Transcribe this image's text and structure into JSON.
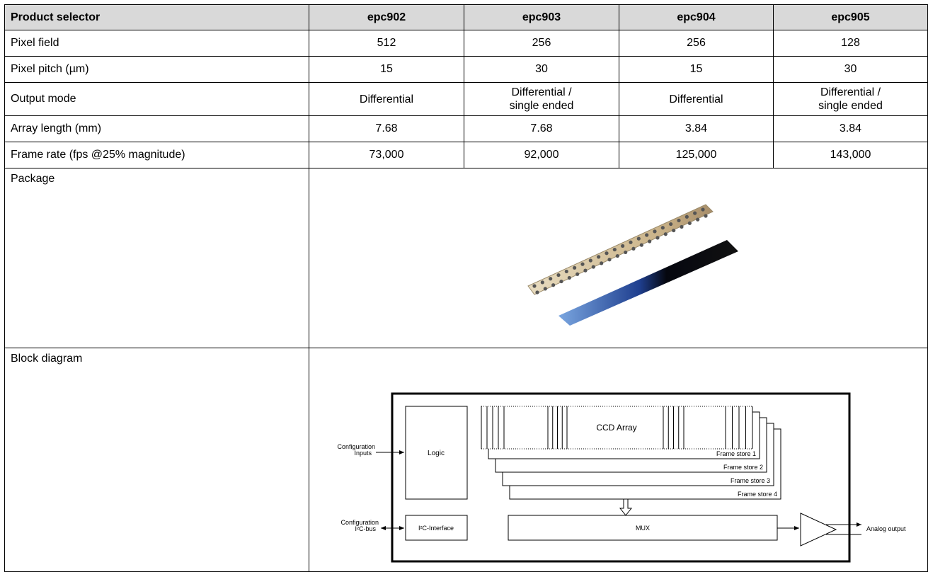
{
  "table": {
    "header": [
      "Product selector",
      "epc902",
      "epc903",
      "epc904",
      "epc905"
    ],
    "rows": [
      [
        "Pixel field",
        "512",
        "256",
        "256",
        "128"
      ],
      [
        "Pixel pitch (µm)",
        "15",
        "30",
        "15",
        "30"
      ],
      [
        "Output mode",
        [
          "Differential"
        ],
        [
          "Differential /",
          "single ended"
        ],
        [
          "Differential"
        ],
        [
          "Differential /",
          "single ended"
        ]
      ],
      [
        "Array length (mm)",
        "7.68",
        "7.68",
        "3.84",
        "3.84"
      ],
      [
        "Frame rate (fps @25% magnitude)",
        "73,000",
        "92,000",
        "125,000",
        "143,000"
      ]
    ],
    "package_label": "Package",
    "block_diagram_label": "Block diagram"
  },
  "diagram": {
    "config_inputs": [
      "Configuration",
      "Inputs"
    ],
    "logic": "Logic",
    "ccd_array": "CCD Array",
    "frame_stores": [
      "Frame store 1",
      "Frame store 2",
      "Frame store 3",
      "Frame store 4"
    ],
    "config_bus": [
      "Configuration",
      "I²C-bus"
    ],
    "i2c_interface": "I²C-Interface",
    "mux": "MUX",
    "analog_output": "Analog output"
  }
}
